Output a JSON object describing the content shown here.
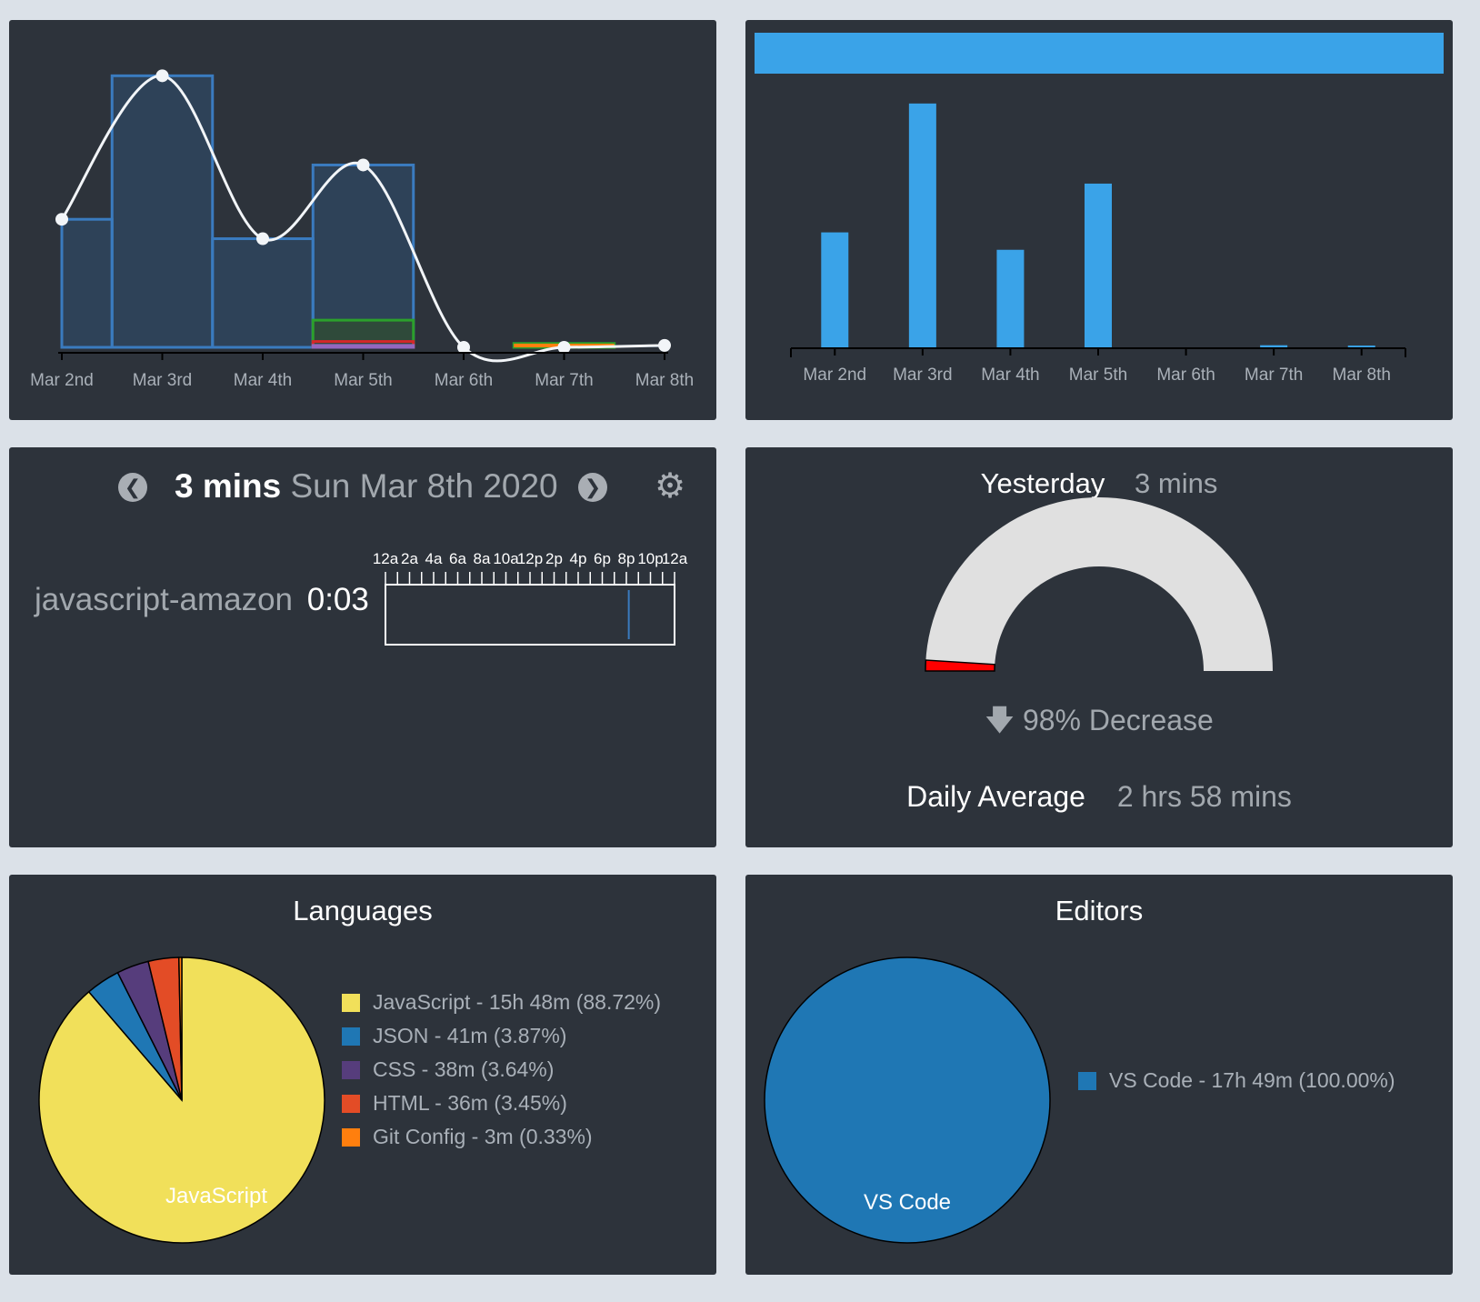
{
  "chart_data": [
    {
      "type": "area",
      "categories": [
        "Mar 2nd",
        "Mar 3rd",
        "Mar 4th",
        "Mar 5th",
        "Mar 6th",
        "Mar 7th",
        "Mar 8th"
      ],
      "series": [
        {
          "values": [
            3.3,
            7.0,
            2.8,
            4.7,
            0,
            0,
            0.05
          ]
        },
        {
          "values": [
            0,
            0,
            0,
            0.7,
            0,
            0.1,
            0
          ]
        },
        {
          "values": [
            0,
            0,
            0,
            0.15,
            0,
            0,
            0
          ]
        },
        {
          "values": [
            0,
            0,
            0,
            0.05,
            0,
            0,
            0
          ]
        }
      ],
      "ylim": [
        0,
        7.5
      ],
      "colors": [
        "#3a7bbf",
        "#2ca02c",
        "#d62728",
        "#9467bd",
        "#ff7f0e"
      ]
    },
    {
      "type": "bar",
      "categories": [
        "Mar 2nd",
        "Mar 3rd",
        "Mar 4th",
        "Mar 5th",
        "Mar 6th",
        "Mar 7th",
        "Mar 8th"
      ],
      "values": [
        3.3,
        7.0,
        2.8,
        4.7,
        0,
        0.06,
        0.05
      ],
      "ylim": [
        0,
        7.1
      ],
      "color": "#3aa3e8"
    },
    {
      "type": "pie",
      "title": "Languages",
      "labels": [
        "JavaScript",
        "JSON",
        "CSS",
        "HTML",
        "Git Config"
      ],
      "values": [
        88.72,
        3.87,
        3.64,
        3.45,
        0.33
      ],
      "legend": [
        "JavaScript - 15h 48m (88.72%)",
        "JSON - 41m (3.87%)",
        "CSS - 38m (3.64%)",
        "HTML - 36m (3.45%)",
        "Git Config - 3m (0.33%)"
      ],
      "slice_label": "JavaScript",
      "colors": [
        "#f1e05a",
        "#1f77b4",
        "#563d7c",
        "#e34c26",
        "#ff7f0e"
      ]
    },
    {
      "type": "pie",
      "title": "Editors",
      "labels": [
        "VS Code"
      ],
      "values": [
        100
      ],
      "legend": [
        "VS Code - 17h 49m (100.00%)"
      ],
      "slice_label": "VS Code",
      "colors": [
        "#1f77b4"
      ]
    }
  ],
  "day_view": {
    "total": "3 mins",
    "date": "Sun Mar 8th 2020",
    "prev_icon": "chevron-left-icon",
    "next_icon": "chevron-right-icon",
    "settings_icon": "gear-icon",
    "hour_labels": [
      "12a",
      "2a",
      "4a",
      "6a",
      "8a",
      "10a",
      "12p",
      "2p",
      "4p",
      "6p",
      "8p",
      "10p",
      "12a"
    ],
    "project": "javascript-amazon",
    "project_time": "0:03",
    "activity_at_hour": 20.2
  },
  "gauge": {
    "yesterday_label": "Yesterday",
    "yesterday_value": "3 mins",
    "fraction": 0.02,
    "change_text": "98% Decrease",
    "change_icon": "arrow-down-icon",
    "average_label": "Daily Average",
    "average_value": "2 hrs 58 mins",
    "colors": {
      "track": "#e0e0e0",
      "fill": "#ff0000"
    }
  }
}
